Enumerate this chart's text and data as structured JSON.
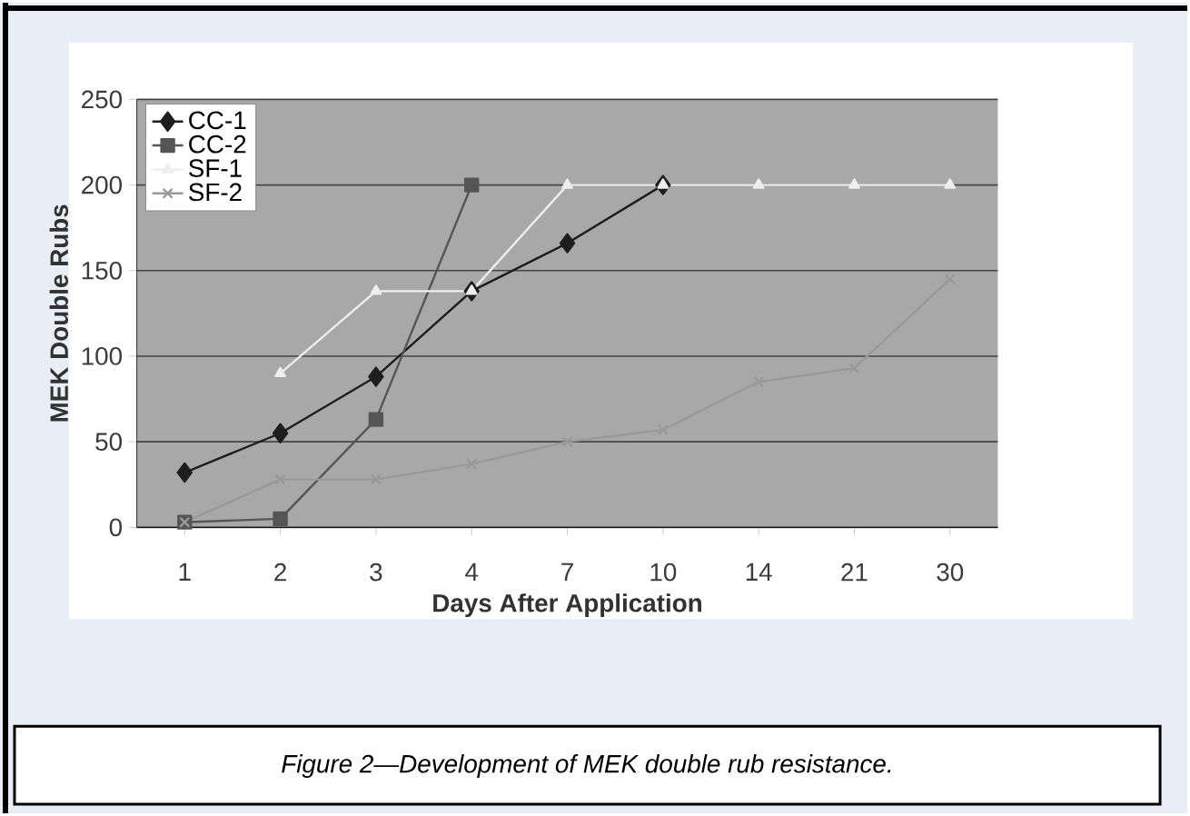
{
  "chart_data": {
    "type": "line",
    "xlabel": "Days After Application",
    "ylabel": "MEK Double Rubs",
    "categories": [
      "1",
      "2",
      "3",
      "4",
      "7",
      "10",
      "14",
      "21",
      "30"
    ],
    "series": [
      {
        "name": "CC-1",
        "color": "#1e1e1e",
        "marker": "diamond",
        "values": [
          32,
          55,
          88,
          138,
          166,
          200,
          null,
          null,
          null
        ]
      },
      {
        "name": "CC-2",
        "color": "#555555",
        "marker": "square",
        "values": [
          3,
          5,
          63,
          200,
          null,
          null,
          null,
          null,
          null
        ]
      },
      {
        "name": "SF-1",
        "color": "#eeeeee",
        "marker": "triangle",
        "values": [
          null,
          90,
          138,
          138,
          200,
          200,
          200,
          200,
          200
        ]
      },
      {
        "name": "SF-2",
        "color": "#999999",
        "marker": "cross",
        "values": [
          3,
          28,
          28,
          37,
          50,
          57,
          85,
          93,
          145
        ]
      }
    ],
    "ylim": [
      0,
      250
    ],
    "yticks": [
      0,
      50,
      100,
      150,
      200,
      250
    ],
    "grid": "y",
    "legend": "top left",
    "annotations": [
      "*Figure 2—Development of MEK double rub resistance.*"
    ]
  }
}
